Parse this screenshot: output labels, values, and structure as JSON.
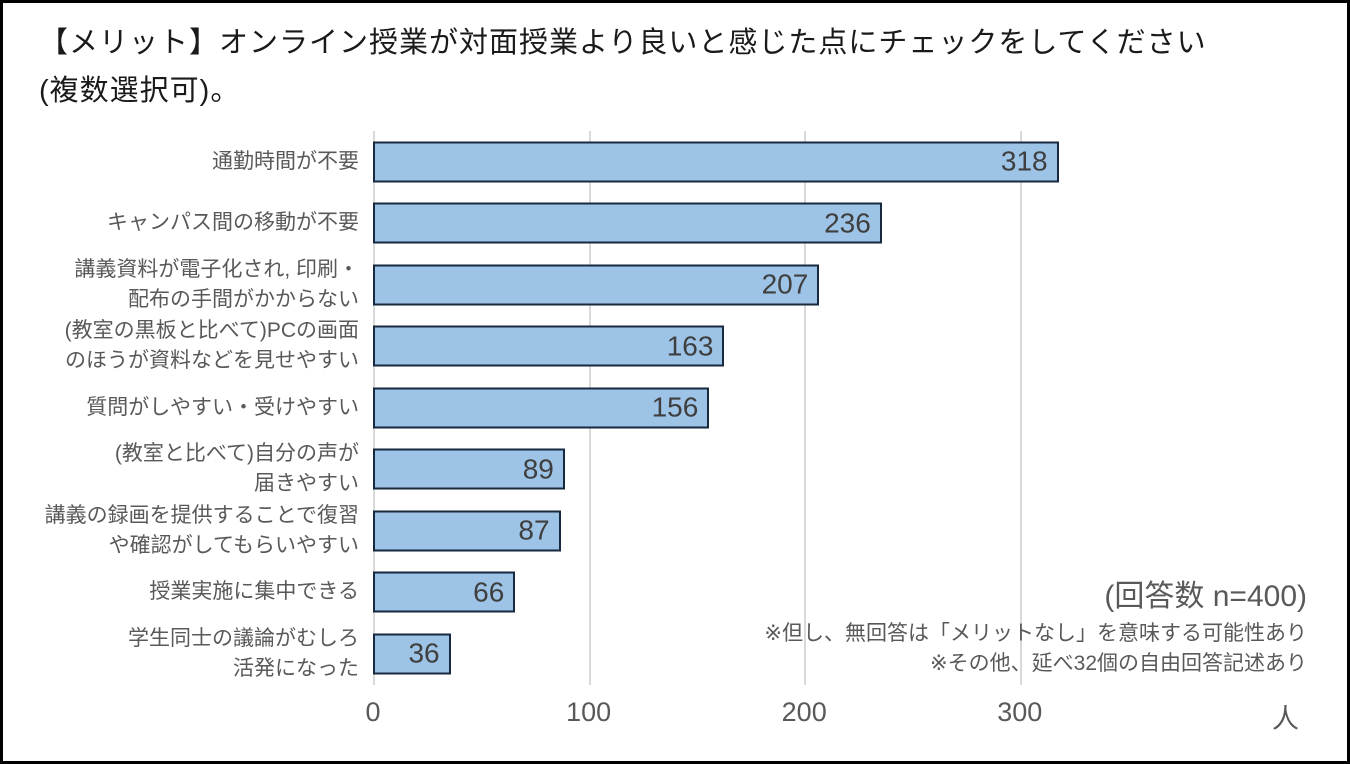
{
  "title": {
    "line1": "【メリット】オンライン授業が対面授業より良いと感じた点にチェックをしてください",
    "line2": "(複数選択可)。"
  },
  "chart_data": {
    "type": "bar",
    "orientation": "horizontal",
    "title": "【メリット】オンライン授業が対面授業より良いと感じた点にチェックをしてください(複数選択可)。",
    "categories": [
      "通勤時間が不要",
      "キャンパス間の移動が不要",
      "講義資料が電子化され, 印刷・配布の手間がかからない",
      "(教室の黒板と比べて)PCの画面のほうが資料などを見せやすい",
      "質問がしやすい・受けやすい",
      "(教室と比べて)自分の声が届きやすい",
      "講義の録画を提供することで復習や確認がしてもらいやすい",
      "授業実施に集中できる",
      "学生同士の議論がむしろ活発になった"
    ],
    "category_lines": [
      [
        "通勤時間が不要"
      ],
      [
        "キャンパス間の移動が不要"
      ],
      [
        "講義資料が電子化され, 印刷・",
        "配布の手間がかからない"
      ],
      [
        "(教室の黒板と比べて)PCの画面",
        "のほうが資料などを見せやすい"
      ],
      [
        "質問がしやすい・受けやすい"
      ],
      [
        "(教室と比べて)自分の声が",
        "届きやすい"
      ],
      [
        "講義の録画を提供することで復習",
        "や確認がしてもらいやすい"
      ],
      [
        "授業実施に集中できる"
      ],
      [
        "学生同士の議論がむしろ",
        "活発になった"
      ]
    ],
    "values": [
      318,
      236,
      207,
      163,
      156,
      89,
      87,
      66,
      36
    ],
    "value_labels_position": "inside-end",
    "x_ticks": [
      0,
      100,
      200,
      300
    ],
    "x_tick_labels": [
      "0",
      "100",
      "200",
      "300"
    ],
    "x_axis_unit": "人",
    "xlim": [
      0,
      436
    ],
    "grid": "vertical-only",
    "legend": "none",
    "colors": {
      "bar_fill": "#9DC3E6",
      "bar_border": "#17293E",
      "gridline": "#D9D9D9",
      "category_label": "#595959",
      "value_label": "#3F3F3F",
      "title_text": "#1A1A1A"
    },
    "annotations": {
      "n_label": "(回答数 n=400)",
      "note1": "※但し、無回答は「メリットなし」を意味する可能性あり",
      "note2": "※その他、延べ32個の自由回答記述あり"
    }
  }
}
